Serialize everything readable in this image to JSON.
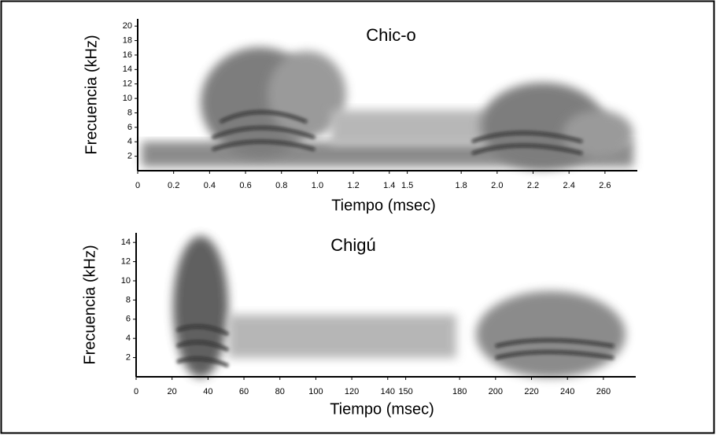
{
  "chart_data": [
    {
      "type": "spectrogram",
      "title": "Chic-o",
      "x_label": "Tiempo (msec)",
      "y_label": "Frecuencia (kHz)",
      "xlim": [
        0,
        2.78
      ],
      "ylim": [
        0,
        21
      ],
      "xticks": [
        0,
        0.2,
        0.4,
        0.6,
        0.8,
        {
          "value": 1,
          "label": "1.0"
        },
        1.2,
        1.4,
        1.5,
        1.8,
        {
          "value": 2,
          "label": "2.0"
        },
        2.2,
        2.4,
        2.6
      ],
      "yticks": [
        2,
        4,
        6,
        8,
        10,
        12,
        14,
        16,
        18,
        20
      ]
    },
    {
      "type": "spectrogram",
      "title": "Chigú",
      "x_label": "Tiempo (msec)",
      "y_label": "Frecuencia (kHz)",
      "xlim": [
        0,
        278
      ],
      "ylim": [
        0,
        15
      ],
      "xticks": [
        0,
        20,
        40,
        60,
        80,
        100,
        120,
        140,
        150,
        180,
        200,
        220,
        240,
        260
      ],
      "yticks": [
        2,
        4,
        6,
        8,
        10,
        12,
        14
      ]
    }
  ]
}
